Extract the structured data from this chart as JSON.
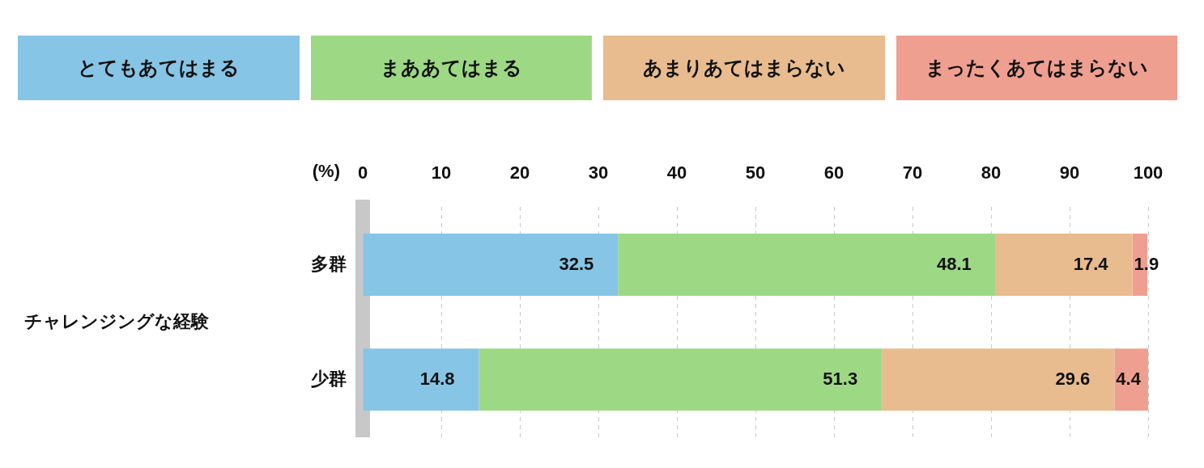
{
  "chart_data": {
    "type": "bar",
    "orientation": "horizontal",
    "stacked": true,
    "annotations": [
      "チャレンジングな経験"
    ],
    "xlabel": "(%)",
    "categories": [
      "多群",
      "少群"
    ],
    "series": [
      {
        "name": "とてもあてはまる",
        "color": "#86c5e5",
        "values": [
          32.5,
          14.8
        ]
      },
      {
        "name": "まああてはまる",
        "color": "#9dd984",
        "values": [
          48.1,
          51.3
        ]
      },
      {
        "name": "あまりあてはまらない",
        "color": "#e8bc8e",
        "values": [
          17.4,
          29.6
        ]
      },
      {
        "name": "まったくあてはまらない",
        "color": "#ef9f8f",
        "values": [
          1.9,
          4.4
        ]
      }
    ],
    "xlim": [
      0,
      100
    ],
    "xticks": [
      0,
      10,
      20,
      30,
      40,
      50,
      60,
      70,
      80,
      90,
      100
    ],
    "grid": "x",
    "legend": "top",
    "data_labels": true
  }
}
